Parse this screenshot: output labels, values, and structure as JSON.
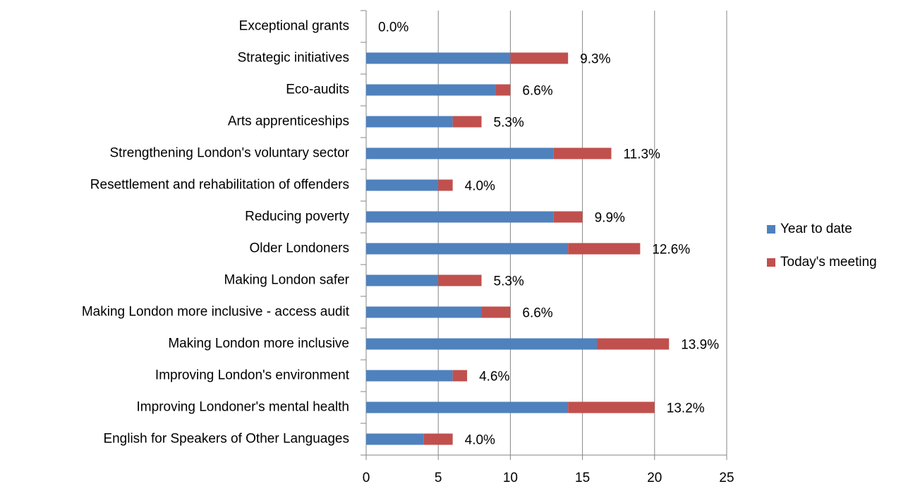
{
  "chart_data": {
    "type": "stacked_bar_horizontal",
    "categories": [
      "Exceptional grants",
      "Strategic initiatives",
      "Eco-audits",
      "Arts apprenticeships",
      "Strengthening London's voluntary sector",
      "Resettlement and rehabilitation of offenders",
      "Reducing poverty",
      "Older Londoners",
      "Making London safer",
      "Making London more inclusive - access audit",
      "Making London more inclusive",
      "Improving London's environment",
      "Improving Londoner's mental health",
      "English for Speakers of Other Languages"
    ],
    "series": [
      {
        "name": "Year to date",
        "color": "#4f81bd",
        "values": [
          0,
          10,
          9,
          6,
          13,
          5,
          13,
          14,
          5,
          8,
          16,
          6,
          14,
          4
        ]
      },
      {
        "name": "Today's meeting",
        "color": "#c0504d",
        "values": [
          0,
          4,
          1,
          2,
          4,
          1,
          2,
          5,
          3,
          2,
          5,
          1,
          6,
          2
        ]
      }
    ],
    "bar_labels": [
      "0.0%",
      "9.3%",
      "6.6%",
      "5.3%",
      "11.3%",
      "4.0%",
      "9.9%",
      "12.6%",
      "5.3%",
      "6.6%",
      "13.9%",
      "4.6%",
      "13.2%",
      "4.0%"
    ],
    "xlim": [
      0,
      25
    ],
    "xticks": [
      0,
      5,
      10,
      15,
      20,
      25
    ],
    "grid": true,
    "legend": "right"
  }
}
